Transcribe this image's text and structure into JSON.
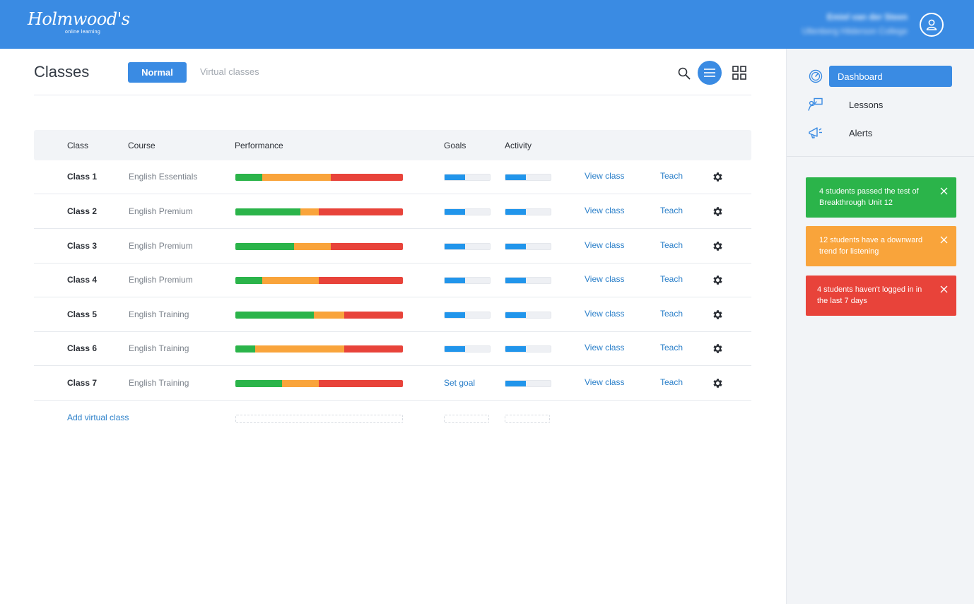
{
  "header": {
    "logo_brand": "Holmwood's",
    "logo_sub": "online learning",
    "user_name": "Emiel van der Steen",
    "user_org": "Ullenberg Hilderson College"
  },
  "main": {
    "title": "Classes",
    "tab_normal": "Normal",
    "tab_virtual": "Virtual classes",
    "columns": {
      "class": "Class",
      "course": "Course",
      "performance": "Performance",
      "goals": "Goals",
      "activity": "Activity"
    },
    "rows": [
      {
        "name": "Class 1",
        "course": "English Essentials",
        "perf": [
          16,
          41,
          43
        ],
        "goals": 0.45,
        "activity": 0.45,
        "view": "View class",
        "teach": "Teach"
      },
      {
        "name": "Class 2",
        "course": "English Premium",
        "perf": [
          39,
          11,
          50
        ],
        "goals": 0.45,
        "activity": 0.45,
        "view": "View class",
        "teach": "Teach"
      },
      {
        "name": "Class 3",
        "course": "English Premium",
        "perf": [
          35,
          22,
          43
        ],
        "goals": 0.45,
        "activity": 0.45,
        "view": "View class",
        "teach": "Teach"
      },
      {
        "name": "Class 4",
        "course": "English Premium",
        "perf": [
          16,
          34,
          50
        ],
        "goals": 0.45,
        "activity": 0.45,
        "view": "View class",
        "teach": "Teach"
      },
      {
        "name": "Class 5",
        "course": "English Training",
        "perf": [
          47,
          18,
          35
        ],
        "goals": 0.45,
        "activity": 0.45,
        "view": "View class",
        "teach": "Teach"
      },
      {
        "name": "Class 6",
        "course": "English Training",
        "perf": [
          12,
          53,
          35
        ],
        "goals": 0.45,
        "activity": 0.45,
        "view": "View class",
        "teach": "Teach"
      },
      {
        "name": "Class 7",
        "course": "English Training",
        "perf": [
          28,
          22,
          50
        ],
        "goals": null,
        "goal_link": "Set goal",
        "activity": 0.45,
        "view": "View class",
        "teach": "Teach"
      }
    ],
    "add_virtual": "Add virtual class"
  },
  "sidebar": {
    "nav": [
      {
        "label": "Dashboard",
        "icon": "speedometer-icon",
        "active": true
      },
      {
        "label": "Lessons",
        "icon": "presentation-icon",
        "active": false
      },
      {
        "label": "Alerts",
        "icon": "megaphone-icon",
        "active": false
      }
    ],
    "alerts": [
      {
        "text": "4 students passed the test of Breakthrough Unit 12",
        "color": "#2bb44a"
      },
      {
        "text": "12 students have a downward trend for listening",
        "color": "#f9a43b"
      },
      {
        "text": "4 students haven't logged in in the last 7 days",
        "color": "#e8433a"
      }
    ]
  },
  "colors": {
    "brand": "#3a8be3",
    "good": "#2bb44a",
    "warn": "#f9a43b",
    "bad": "#e8433a",
    "progress": "#2195eb",
    "link": "#2a7fc9"
  }
}
